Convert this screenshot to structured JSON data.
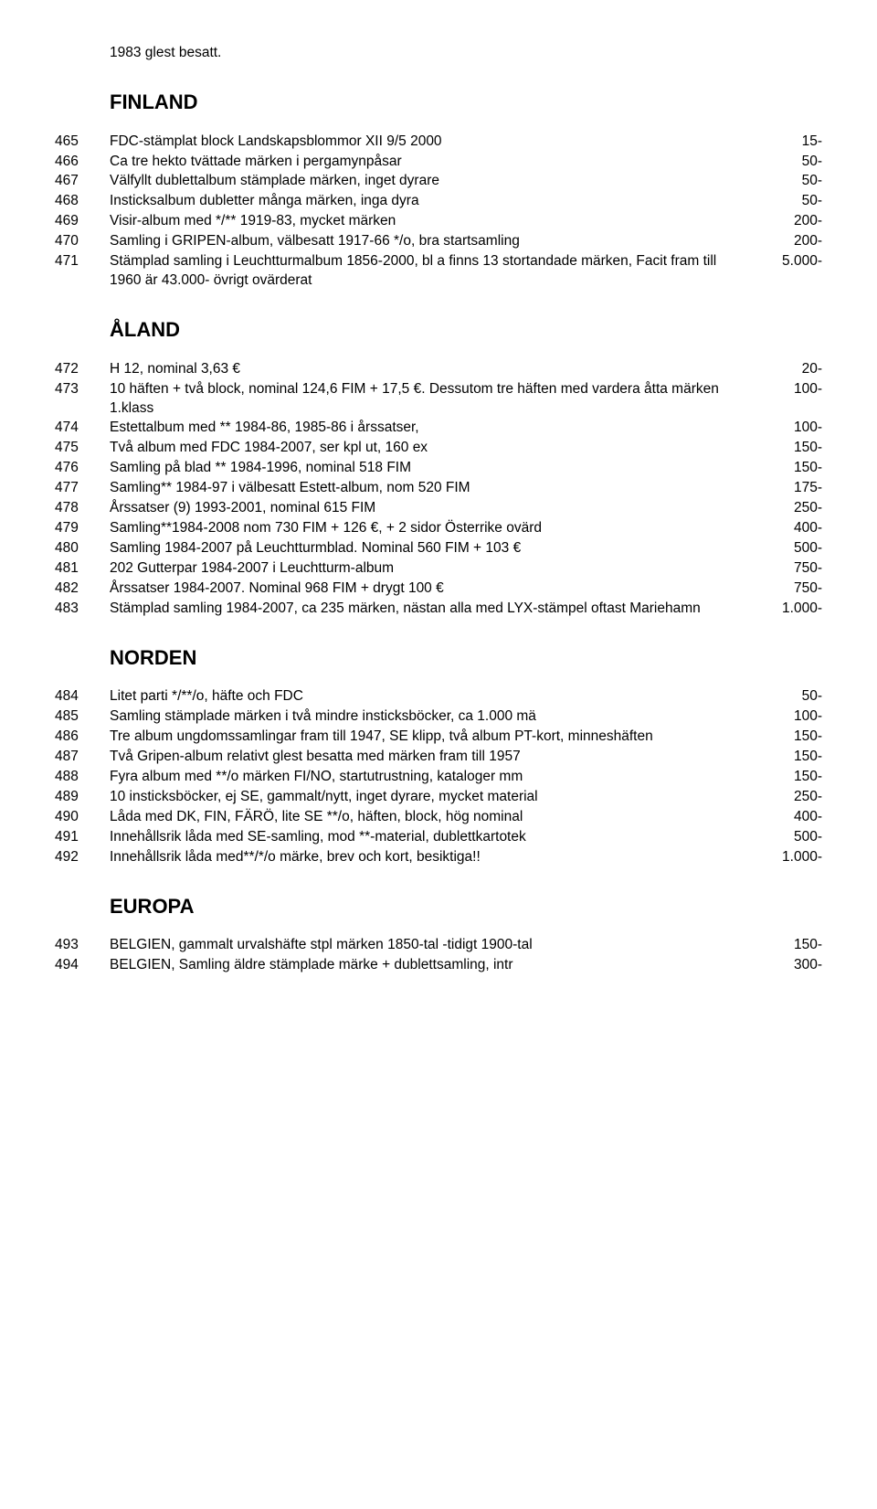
{
  "topLine": "1983 glest besatt.",
  "sections": [
    {
      "heading": "FINLAND",
      "rows": [
        {
          "n": "465",
          "d": "FDC-stämplat block Landskapsblommor XII 9/5 2000",
          "p": "15-"
        },
        {
          "n": "466",
          "d": "Ca tre hekto tvättade märken i pergamynpåsar",
          "p": "50-"
        },
        {
          "n": "467",
          "d": "Välfyllt dublettalbum stämplade märken, inget dyrare",
          "p": "50-"
        },
        {
          "n": "468",
          "d": "Insticksalbum dubletter många märken, inga dyra",
          "p": "50-"
        },
        {
          "n": "469",
          "d": "Visir-album med */** 1919-83, mycket märken",
          "p": "200-"
        },
        {
          "n": "470",
          "d": "Samling i GRIPEN-album, välbesatt 1917-66 */o, bra startsamling",
          "p": "200-"
        },
        {
          "n": "471",
          "d": "Stämplad samling i Leuchtturmalbum 1856-2000, bl a finns 13 stortandade märken, Facit fram till 1960 är 43.000- övrigt ovärderat",
          "p": "5.000-"
        }
      ]
    },
    {
      "heading": "ÅLAND",
      "rows": [
        {
          "n": "472",
          "d": "H 12, nominal 3,63 €",
          "p": "20-"
        },
        {
          "n": "473",
          "d": "10 häften + två block, nominal 124,6 FIM + 17,5 €. Dessutom tre häften med vardera åtta märken 1.klass",
          "p": "100-"
        },
        {
          "n": "474",
          "d": "Estettalbum med ** 1984-86, 1985-86 i årssatser,",
          "p": "100-"
        },
        {
          "n": "475",
          "d": "Två album med FDC 1984-2007, ser kpl ut, 160 ex",
          "p": "150-"
        },
        {
          "n": "476",
          "d": "Samling på blad ** 1984-1996, nominal 518 FIM",
          "p": "150-"
        },
        {
          "n": "477",
          "d": "Samling** 1984-97 i välbesatt Estett-album, nom 520 FIM",
          "p": "175-"
        },
        {
          "n": "478",
          "d": "Årssatser (9) 1993-2001, nominal 615 FIM",
          "p": "250-"
        },
        {
          "n": "479",
          "d": "Samling**1984-2008 nom 730 FIM + 126 €, + 2 sidor Österrike ovärd",
          "p": "400-"
        },
        {
          "n": "480",
          "d": "Samling 1984-2007 på Leuchtturmblad. Nominal 560 FIM + 103 €",
          "p": "500-"
        },
        {
          "n": "481",
          "d": "202 Gutterpar 1984-2007 i Leuchtturm-album",
          "p": "750-"
        },
        {
          "n": "482",
          "d": "Årssatser 1984-2007. Nominal 968 FIM + drygt 100 €",
          "p": "750-"
        },
        {
          "n": "483",
          "d": "Stämplad samling 1984-2007, ca 235 märken, nästan alla med LYX-stämpel oftast Mariehamn",
          "p": "1.000-"
        }
      ]
    },
    {
      "heading": "NORDEN",
      "rows": [
        {
          "n": "484",
          "d": "Litet parti */**/o, häfte och FDC",
          "p": "50-"
        },
        {
          "n": "485",
          "d": "Samling stämplade märken i två mindre insticksböcker, ca 1.000 mä",
          "p": "100-"
        },
        {
          "n": "486",
          "d": "Tre album ungdomssamlingar fram till 1947, SE klipp, två album PT-kort, minneshäften",
          "p": "150-"
        },
        {
          "n": "487",
          "d": "Två Gripen-album relativt glest besatta med märken fram till 1957",
          "p": "150-"
        },
        {
          "n": "488",
          "d": "Fyra album med **/o märken FI/NO, startutrustning, kataloger mm",
          "p": "150-"
        },
        {
          "n": "489",
          "d": "10 insticksböcker, ej SE, gammalt/nytt, inget dyrare, mycket material",
          "p": "250-"
        },
        {
          "n": "490",
          "d": "Låda med DK, FIN, FÄRÖ, lite SE **/o, häften, block, hög nominal",
          "p": "400-"
        },
        {
          "n": "491",
          "d": "Innehållsrik låda med SE-samling, mod **-material, dublettkartotek",
          "p": "500-"
        },
        {
          "n": "492",
          "d": "Innehållsrik låda med**/*/o märke, brev och kort, besiktiga!!",
          "p": "1.000-"
        }
      ]
    },
    {
      "heading": "EUROPA",
      "rows": [
        {
          "n": "493",
          "d": "BELGIEN, gammalt urvalshäfte stpl märken 1850-tal -tidigt 1900-tal",
          "p": "150-"
        },
        {
          "n": "494",
          "d": "BELGIEN, Samling äldre stämplade märke + dublettsamling, intr",
          "p": "300-"
        }
      ]
    }
  ]
}
